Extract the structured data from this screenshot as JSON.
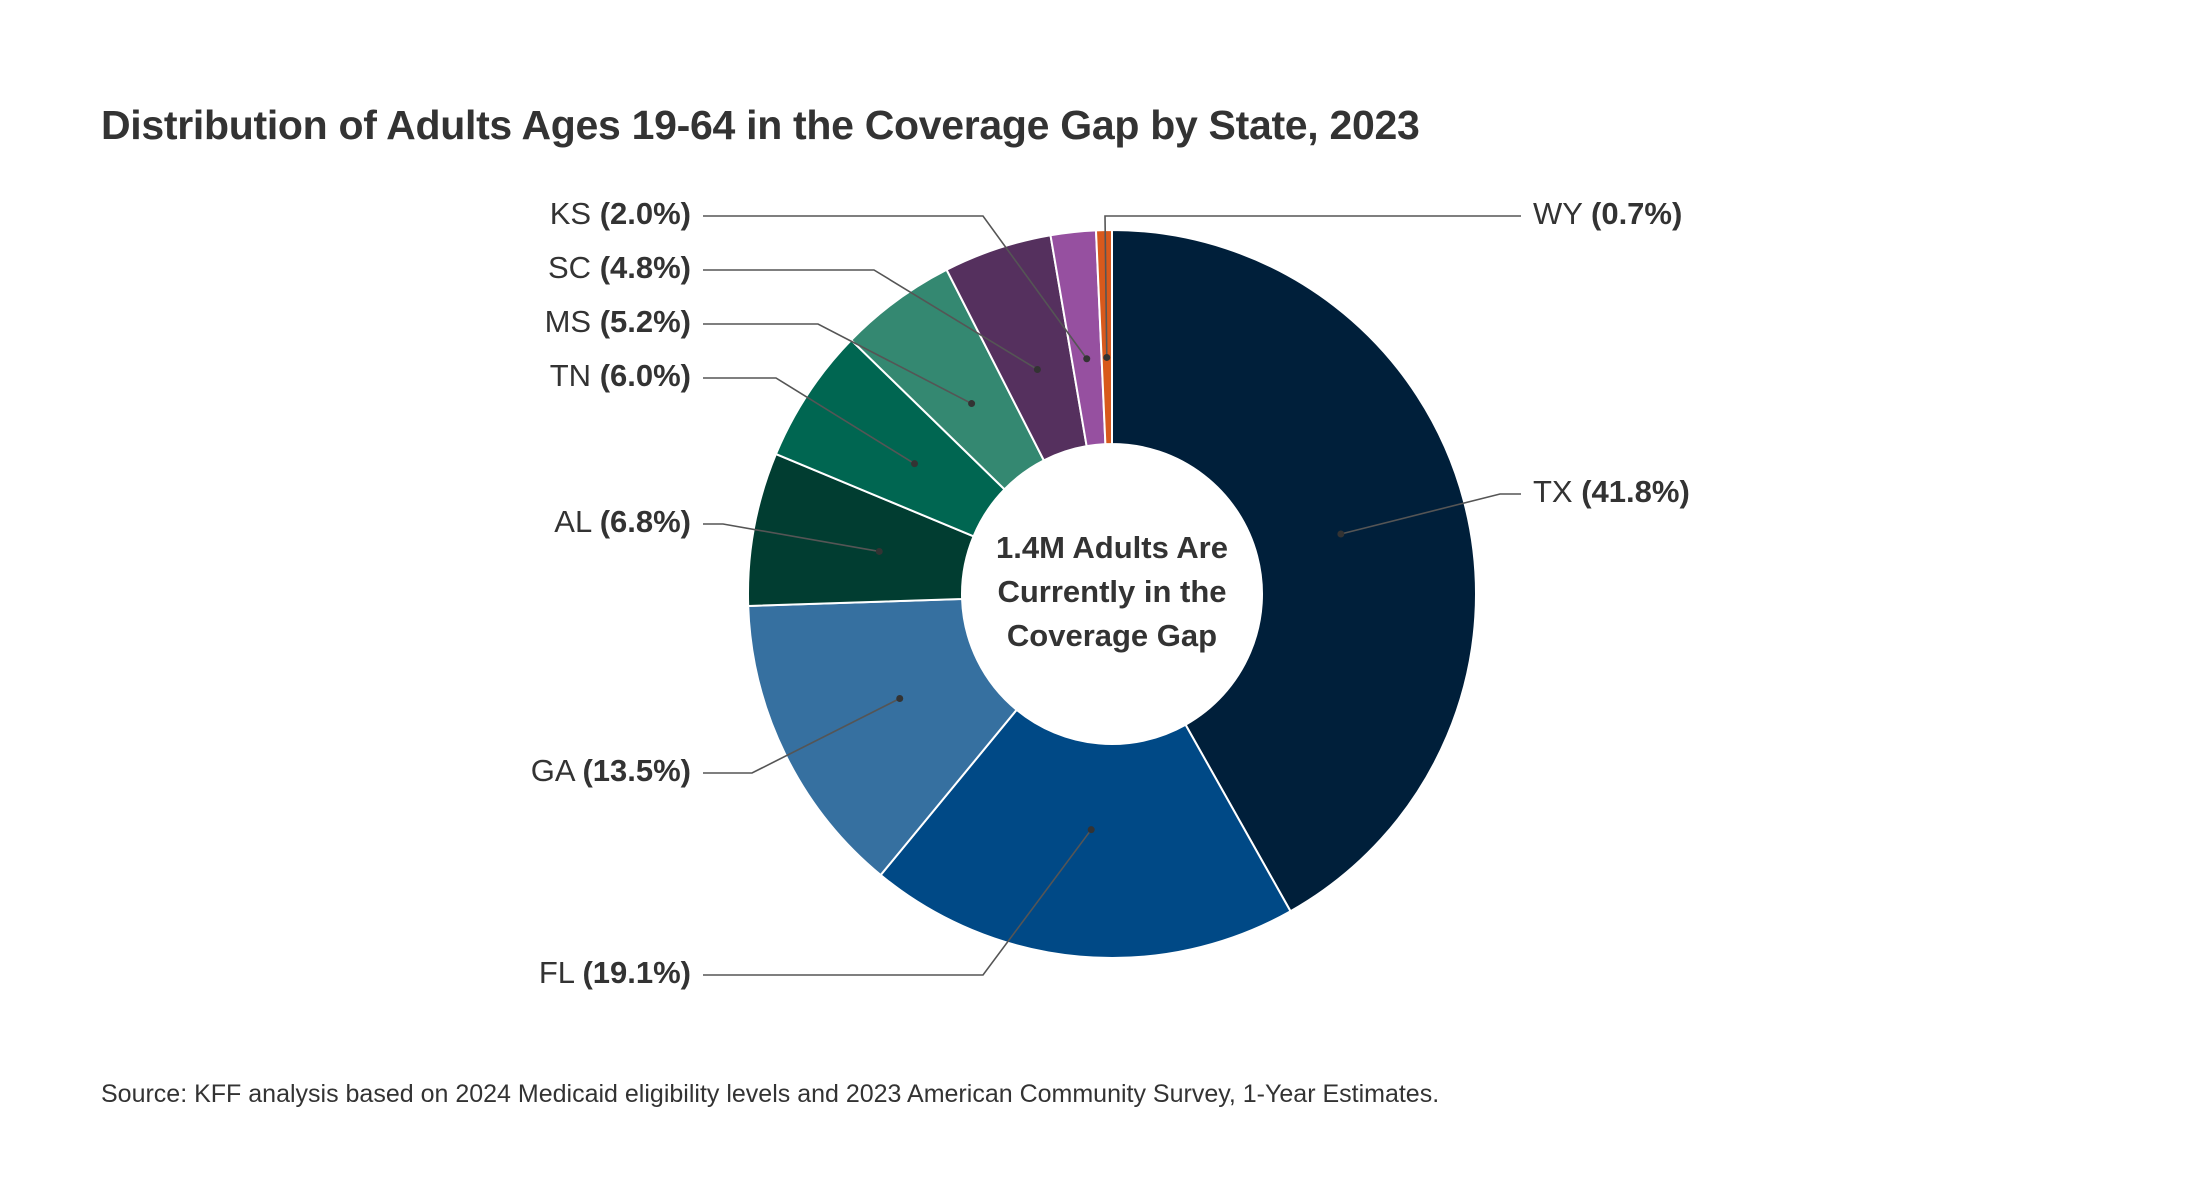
{
  "chart_data": {
    "type": "pie",
    "variant": "donut",
    "title": "Distribution of Adults Ages 19-64 in the Coverage Gap by State, 2023",
    "center_label": [
      "1.4M Adults Are",
      "Currently in the",
      "Coverage Gap"
    ],
    "source": "Source: KFF analysis based on 2024 Medicaid eligibility levels and 2023 American Community Survey, 1-Year Estimates.",
    "slices": [
      {
        "state": "TX",
        "value": 41.8,
        "pct_label": "(41.8%)",
        "color": "#001f3a"
      },
      {
        "state": "FL",
        "value": 19.1,
        "pct_label": "(19.1%)",
        "color": "#004986"
      },
      {
        "state": "GA",
        "value": 13.5,
        "pct_label": "(13.5%)",
        "color": "#3670a0"
      },
      {
        "state": "AL",
        "value": 6.8,
        "pct_label": "(6.8%)",
        "color": "#013d31"
      },
      {
        "state": "TN",
        "value": 6.0,
        "pct_label": "(6.0%)",
        "color": "#006651"
      },
      {
        "state": "MS",
        "value": 5.2,
        "pct_label": "(5.2%)",
        "color": "#348871"
      },
      {
        "state": "SC",
        "value": 4.8,
        "pct_label": "(4.8%)",
        "color": "#55305e"
      },
      {
        "state": "KS",
        "value": 2.0,
        "pct_label": "(2.0%)",
        "color": "#9650a0"
      },
      {
        "state": "WY",
        "value": 0.7,
        "pct_label": "(0.7%)",
        "color": "#d8591c"
      }
    ],
    "legend": "none; slice labels with leader lines"
  }
}
